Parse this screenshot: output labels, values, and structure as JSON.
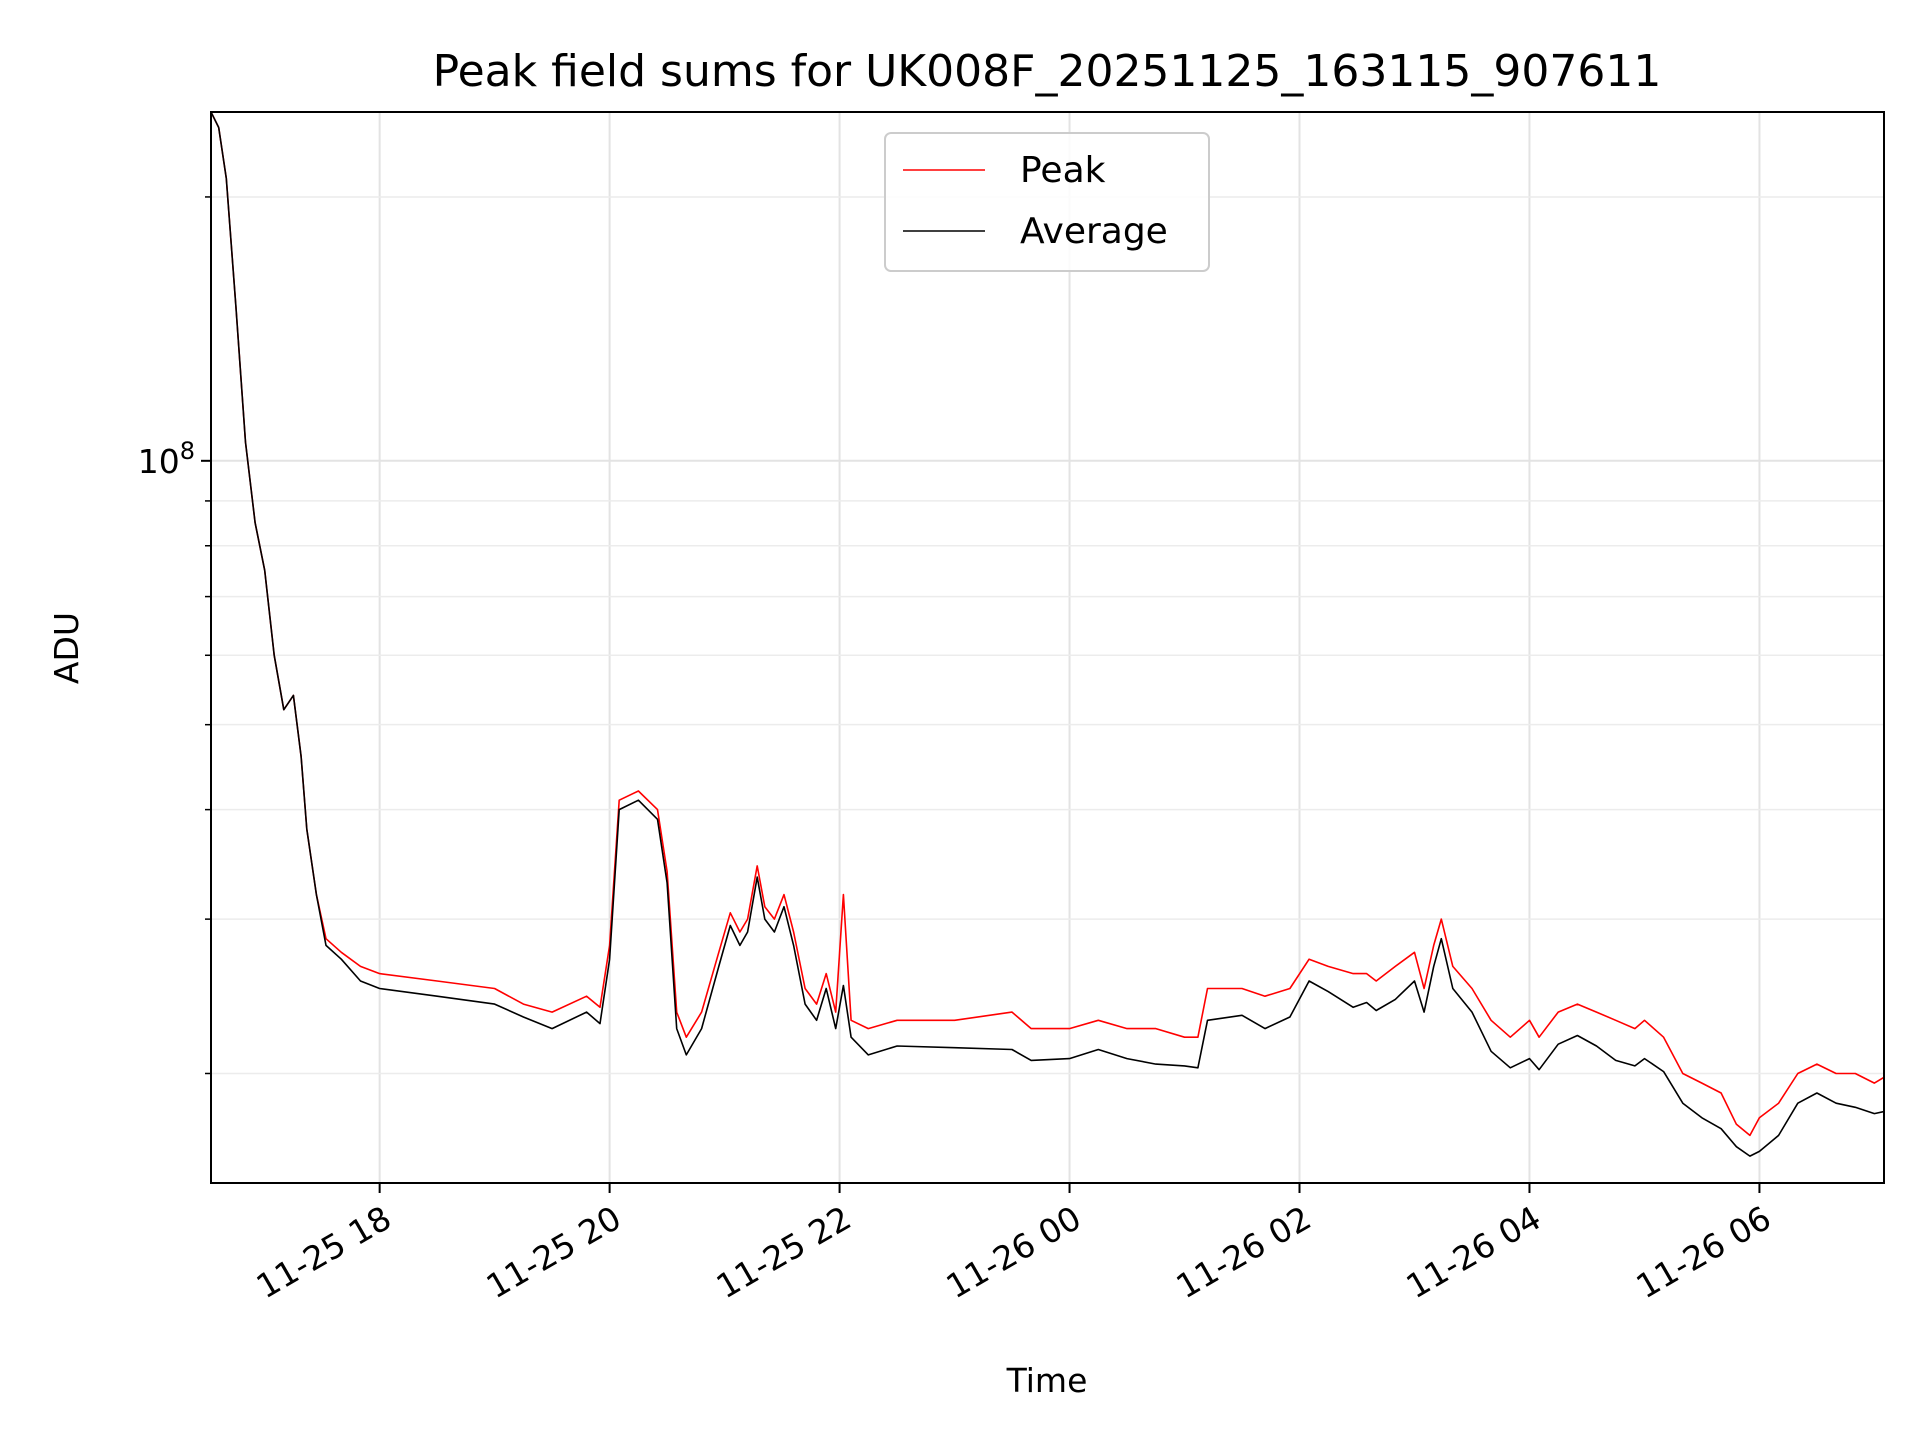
{
  "chart_data": {
    "type": "line",
    "title": "Peak field sums for UK008F_20251125_163115_907611",
    "xlabel": "Time",
    "ylabel": "ADU",
    "y_scale": "log",
    "ylim": [
      15000000,
      250000000
    ],
    "xlim": [
      "2025-11-25 16:32",
      "2025-11-26 07:05"
    ],
    "x_ticks": [
      {
        "t": "2025-11-25 18:00",
        "label": "11-25 18"
      },
      {
        "t": "2025-11-25 20:00",
        "label": "11-25 20"
      },
      {
        "t": "2025-11-25 22:00",
        "label": "11-25 22"
      },
      {
        "t": "2025-11-26 00:00",
        "label": "11-26 00"
      },
      {
        "t": "2025-11-26 02:00",
        "label": "11-26 02"
      },
      {
        "t": "2025-11-26 04:00",
        "label": "11-26 04"
      },
      {
        "t": "2025-11-26 06:00",
        "label": "11-26 06"
      }
    ],
    "y_major_ticks": [
      {
        "value": 100000000,
        "base": "10",
        "exp": "8"
      }
    ],
    "grid": true,
    "legend": {
      "placement": "upper-center",
      "entries": [
        {
          "name": "Peak",
          "color": "#ff0000"
        },
        {
          "name": "Average",
          "color": "#000000"
        }
      ]
    },
    "series": [
      {
        "name": "Average",
        "color": "#000000",
        "points": [
          [
            "2025-11-25 16:32",
            250000000
          ],
          [
            "2025-11-25 16:36",
            240000000
          ],
          [
            "2025-11-25 16:40",
            210000000
          ],
          [
            "2025-11-25 16:45",
            150000000
          ],
          [
            "2025-11-25 16:50",
            105000000
          ],
          [
            "2025-11-25 16:55",
            85000000
          ],
          [
            "2025-11-25 17:00",
            75000000
          ],
          [
            "2025-11-25 17:05",
            60000000
          ],
          [
            "2025-11-25 17:10",
            52000000
          ],
          [
            "2025-11-25 17:15",
            54000000
          ],
          [
            "2025-11-25 17:19",
            46000000
          ],
          [
            "2025-11-25 17:22",
            38000000
          ],
          [
            "2025-11-25 17:27",
            32000000
          ],
          [
            "2025-11-25 17:32",
            28000000
          ],
          [
            "2025-11-25 17:40",
            27000000
          ],
          [
            "2025-11-25 17:50",
            25500000
          ],
          [
            "2025-11-25 18:00",
            25000000
          ],
          [
            "2025-11-25 18:30",
            24500000
          ],
          [
            "2025-11-25 19:00",
            24000000
          ],
          [
            "2025-11-25 19:15",
            23200000
          ],
          [
            "2025-11-25 19:30",
            22500000
          ],
          [
            "2025-11-25 19:48",
            23500000
          ],
          [
            "2025-11-25 19:55",
            22800000
          ],
          [
            "2025-11-25 20:00",
            27000000
          ],
          [
            "2025-11-25 20:05",
            40000000
          ],
          [
            "2025-11-25 20:15",
            41000000
          ],
          [
            "2025-11-25 20:25",
            39000000
          ],
          [
            "2025-11-25 20:30",
            33000000
          ],
          [
            "2025-11-25 20:35",
            22500000
          ],
          [
            "2025-11-25 20:40",
            21000000
          ],
          [
            "2025-11-25 20:48",
            22500000
          ],
          [
            "2025-11-25 20:57",
            26500000
          ],
          [
            "2025-11-25 21:03",
            29500000
          ],
          [
            "2025-11-25 21:08",
            28000000
          ],
          [
            "2025-11-25 21:12",
            29000000
          ],
          [
            "2025-11-25 21:17",
            33500000
          ],
          [
            "2025-11-25 21:21",
            30000000
          ],
          [
            "2025-11-25 21:26",
            29000000
          ],
          [
            "2025-11-25 21:31",
            31000000
          ],
          [
            "2025-11-25 21:36",
            28000000
          ],
          [
            "2025-11-25 21:42",
            24000000
          ],
          [
            "2025-11-25 21:48",
            23000000
          ],
          [
            "2025-11-25 21:53",
            25000000
          ],
          [
            "2025-11-25 21:58",
            22500000
          ],
          [
            "2025-11-25 22:02",
            25200000
          ],
          [
            "2025-11-25 22:06",
            22000000
          ],
          [
            "2025-11-25 22:15",
            21000000
          ],
          [
            "2025-11-25 22:30",
            21500000
          ],
          [
            "2025-11-25 23:00",
            21400000
          ],
          [
            "2025-11-25 23:30",
            21300000
          ],
          [
            "2025-11-25 23:40",
            20700000
          ],
          [
            "2025-11-26 00:00",
            20800000
          ],
          [
            "2025-11-26 00:15",
            21300000
          ],
          [
            "2025-11-26 00:30",
            20800000
          ],
          [
            "2025-11-26 00:45",
            20500000
          ],
          [
            "2025-11-26 01:00",
            20400000
          ],
          [
            "2025-11-26 01:07",
            20300000
          ],
          [
            "2025-11-26 01:12",
            23000000
          ],
          [
            "2025-11-26 01:30",
            23300000
          ],
          [
            "2025-11-26 01:42",
            22500000
          ],
          [
            "2025-11-26 01:55",
            23200000
          ],
          [
            "2025-11-26 02:05",
            25500000
          ],
          [
            "2025-11-26 02:15",
            24800000
          ],
          [
            "2025-11-26 02:28",
            23800000
          ],
          [
            "2025-11-26 02:35",
            24100000
          ],
          [
            "2025-11-26 02:40",
            23600000
          ],
          [
            "2025-11-26 02:50",
            24300000
          ],
          [
            "2025-11-26 03:00",
            25500000
          ],
          [
            "2025-11-26 03:05",
            23500000
          ],
          [
            "2025-11-26 03:10",
            26500000
          ],
          [
            "2025-11-26 03:14",
            28500000
          ],
          [
            "2025-11-26 03:20",
            25000000
          ],
          [
            "2025-11-26 03:30",
            23500000
          ],
          [
            "2025-11-26 03:40",
            21200000
          ],
          [
            "2025-11-26 03:50",
            20300000
          ],
          [
            "2025-11-26 04:00",
            20800000
          ],
          [
            "2025-11-26 04:05",
            20200000
          ],
          [
            "2025-11-26 04:15",
            21600000
          ],
          [
            "2025-11-26 04:25",
            22100000
          ],
          [
            "2025-11-26 04:35",
            21500000
          ],
          [
            "2025-11-26 04:45",
            20700000
          ],
          [
            "2025-11-26 04:55",
            20400000
          ],
          [
            "2025-11-26 05:00",
            20800000
          ],
          [
            "2025-11-26 05:10",
            20100000
          ],
          [
            "2025-11-26 05:20",
            18500000
          ],
          [
            "2025-11-26 05:30",
            17800000
          ],
          [
            "2025-11-26 05:40",
            17300000
          ],
          [
            "2025-11-26 05:48",
            16500000
          ],
          [
            "2025-11-26 05:55",
            16100000
          ],
          [
            "2025-11-26 06:00",
            16300000
          ],
          [
            "2025-11-26 06:10",
            17000000
          ],
          [
            "2025-11-26 06:20",
            18500000
          ],
          [
            "2025-11-26 06:30",
            19000000
          ],
          [
            "2025-11-26 06:40",
            18500000
          ],
          [
            "2025-11-26 06:50",
            18300000
          ],
          [
            "2025-11-26 07:00",
            18000000
          ],
          [
            "2025-11-26 07:05",
            18100000
          ]
        ]
      },
      {
        "name": "Peak",
        "color": "#ff0000",
        "points": [
          [
            "2025-11-25 16:32",
            250000000
          ],
          [
            "2025-11-25 16:36",
            240000000
          ],
          [
            "2025-11-25 16:40",
            210000000
          ],
          [
            "2025-11-25 16:45",
            150000000
          ],
          [
            "2025-11-25 16:50",
            105000000
          ],
          [
            "2025-11-25 16:55",
            85000000
          ],
          [
            "2025-11-25 17:00",
            75000000
          ],
          [
            "2025-11-25 17:05",
            60000000
          ],
          [
            "2025-11-25 17:10",
            52000000
          ],
          [
            "2025-11-25 17:15",
            54000000
          ],
          [
            "2025-11-25 17:19",
            46000000
          ],
          [
            "2025-11-25 17:22",
            38000000
          ],
          [
            "2025-11-25 17:27",
            32000000
          ],
          [
            "2025-11-25 17:32",
            28500000
          ],
          [
            "2025-11-25 17:40",
            27500000
          ],
          [
            "2025-11-25 17:50",
            26500000
          ],
          [
            "2025-11-25 18:00",
            26000000
          ],
          [
            "2025-11-25 18:30",
            25500000
          ],
          [
            "2025-11-25 19:00",
            25000000
          ],
          [
            "2025-11-25 19:15",
            24000000
          ],
          [
            "2025-11-25 19:30",
            23500000
          ],
          [
            "2025-11-25 19:48",
            24500000
          ],
          [
            "2025-11-25 19:55",
            23800000
          ],
          [
            "2025-11-25 20:00",
            28000000
          ],
          [
            "2025-11-25 20:05",
            41000000
          ],
          [
            "2025-11-25 20:15",
            42000000
          ],
          [
            "2025-11-25 20:25",
            40000000
          ],
          [
            "2025-11-25 20:30",
            34000000
          ],
          [
            "2025-11-25 20:35",
            23500000
          ],
          [
            "2025-11-25 20:40",
            22000000
          ],
          [
            "2025-11-25 20:48",
            23500000
          ],
          [
            "2025-11-25 20:57",
            27500000
          ],
          [
            "2025-11-25 21:03",
            30500000
          ],
          [
            "2025-11-25 21:08",
            29000000
          ],
          [
            "2025-11-25 21:12",
            30000000
          ],
          [
            "2025-11-25 21:17",
            34500000
          ],
          [
            "2025-11-25 21:21",
            31000000
          ],
          [
            "2025-11-25 21:26",
            30000000
          ],
          [
            "2025-11-25 21:31",
            32000000
          ],
          [
            "2025-11-25 21:36",
            29000000
          ],
          [
            "2025-11-25 21:42",
            25000000
          ],
          [
            "2025-11-25 21:48",
            24000000
          ],
          [
            "2025-11-25 21:53",
            26000000
          ],
          [
            "2025-11-25 21:58",
            23500000
          ],
          [
            "2025-11-25 22:02",
            32000000
          ],
          [
            "2025-11-25 22:06",
            23000000
          ],
          [
            "2025-11-25 22:15",
            22500000
          ],
          [
            "2025-11-25 22:30",
            23000000
          ],
          [
            "2025-11-25 23:00",
            23000000
          ],
          [
            "2025-11-25 23:30",
            23500000
          ],
          [
            "2025-11-25 23:40",
            22500000
          ],
          [
            "2025-11-26 00:00",
            22500000
          ],
          [
            "2025-11-26 00:15",
            23000000
          ],
          [
            "2025-11-26 00:30",
            22500000
          ],
          [
            "2025-11-26 00:45",
            22500000
          ],
          [
            "2025-11-26 01:00",
            22000000
          ],
          [
            "2025-11-26 01:07",
            22000000
          ],
          [
            "2025-11-26 01:12",
            25000000
          ],
          [
            "2025-11-26 01:30",
            25000000
          ],
          [
            "2025-11-26 01:42",
            24500000
          ],
          [
            "2025-11-26 01:55",
            25000000
          ],
          [
            "2025-11-26 02:05",
            27000000
          ],
          [
            "2025-11-26 02:15",
            26500000
          ],
          [
            "2025-11-26 02:28",
            26000000
          ],
          [
            "2025-11-26 02:35",
            26000000
          ],
          [
            "2025-11-26 02:40",
            25500000
          ],
          [
            "2025-11-26 02:50",
            26500000
          ],
          [
            "2025-11-26 03:00",
            27500000
          ],
          [
            "2025-11-26 03:05",
            25000000
          ],
          [
            "2025-11-26 03:10",
            28000000
          ],
          [
            "2025-11-26 03:14",
            30000000
          ],
          [
            "2025-11-26 03:20",
            26500000
          ],
          [
            "2025-11-26 03:30",
            25000000
          ],
          [
            "2025-11-26 03:40",
            23000000
          ],
          [
            "2025-11-26 03:50",
            22000000
          ],
          [
            "2025-11-26 04:00",
            23000000
          ],
          [
            "2025-11-26 04:05",
            22000000
          ],
          [
            "2025-11-26 04:15",
            23500000
          ],
          [
            "2025-11-26 04:25",
            24000000
          ],
          [
            "2025-11-26 04:35",
            23500000
          ],
          [
            "2025-11-26 04:45",
            23000000
          ],
          [
            "2025-11-26 04:55",
            22500000
          ],
          [
            "2025-11-26 05:00",
            23000000
          ],
          [
            "2025-11-26 05:10",
            22000000
          ],
          [
            "2025-11-26 05:20",
            20000000
          ],
          [
            "2025-11-26 05:30",
            19500000
          ],
          [
            "2025-11-26 05:40",
            19000000
          ],
          [
            "2025-11-26 05:48",
            17500000
          ],
          [
            "2025-11-26 05:55",
            17000000
          ],
          [
            "2025-11-26 06:00",
            17800000
          ],
          [
            "2025-11-26 06:10",
            18500000
          ],
          [
            "2025-11-26 06:20",
            20000000
          ],
          [
            "2025-11-26 06:30",
            20500000
          ],
          [
            "2025-11-26 06:40",
            20000000
          ],
          [
            "2025-11-26 06:50",
            20000000
          ],
          [
            "2025-11-26 07:00",
            19500000
          ],
          [
            "2025-11-26 07:05",
            19800000
          ]
        ]
      }
    ]
  }
}
